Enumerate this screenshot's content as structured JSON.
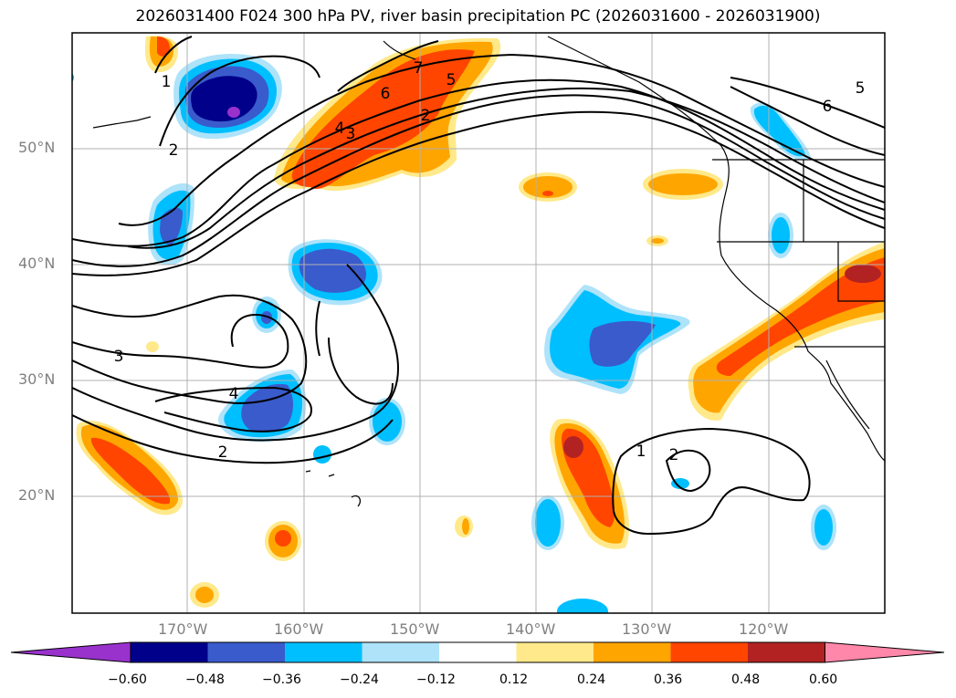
{
  "title": "2026031400 F024 300 hPa PV, river basin precipitation PC (2026031600 - 2026031900)",
  "map": {
    "lat_labels": [
      "50°N",
      "40°N",
      "30°N",
      "20°N"
    ],
    "lon_labels": [
      "170°W",
      "160°W",
      "150°W",
      "140°W",
      "130°W",
      "120°W"
    ],
    "contour_labels": [
      "1",
      "2",
      "3",
      "4",
      "5",
      "6",
      "7"
    ]
  },
  "colorbar": {
    "tick_labels": [
      "−0.60",
      "−0.48",
      "−0.36",
      "−0.24",
      "−0.12",
      "0.12",
      "0.24",
      "0.36",
      "0.48",
      "0.60"
    ],
    "colors": [
      "#9932cc",
      "#00008b",
      "#3a5bcc",
      "#00bfff",
      "#aee3fa",
      "#ffffff",
      "#ffe98a",
      "#ffa500",
      "#ff4500",
      "#b22222",
      "#ff88aa"
    ]
  }
}
